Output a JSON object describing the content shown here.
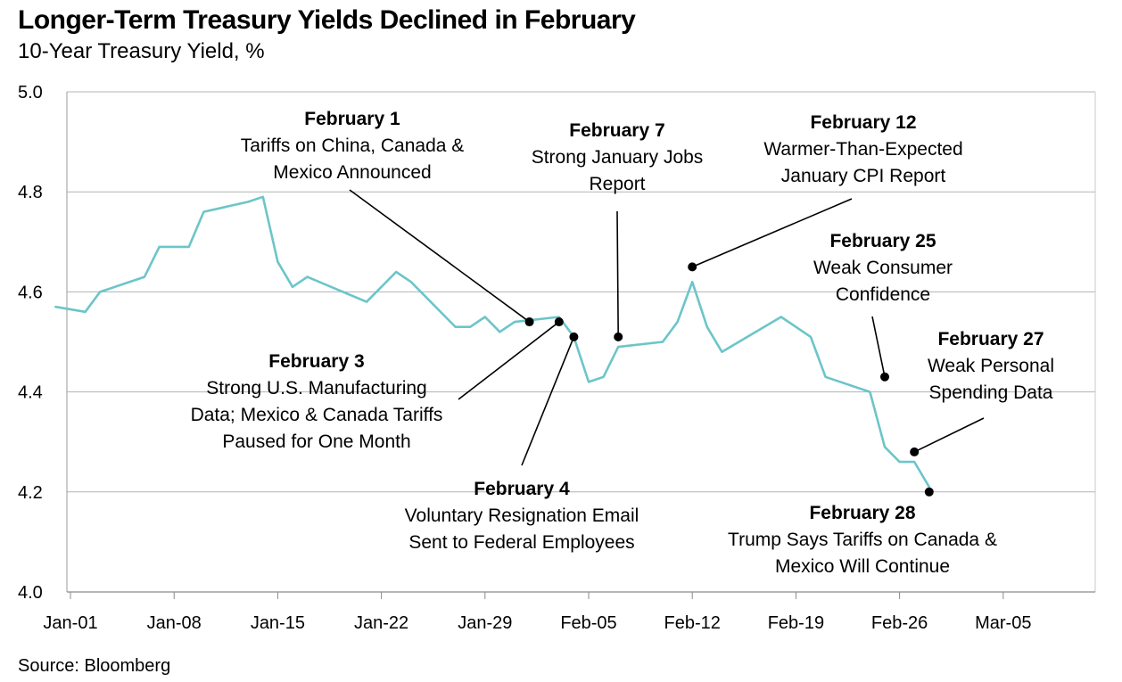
{
  "chart_data": {
    "type": "line",
    "title": "Longer-Term Treasury Yields Declined in February",
    "subtitle": "10-Year Treasury Yield, %",
    "source": "Source: Bloomberg",
    "xlabel": "",
    "ylabel": "",
    "ylim": [
      4.0,
      5.0
    ],
    "y_ticks": [
      "4.0",
      "4.2",
      "4.4",
      "4.6",
      "4.8",
      "5.0"
    ],
    "x_ticks": [
      "Jan-01",
      "Jan-08",
      "Jan-15",
      "Jan-22",
      "Jan-29",
      "Feb-05",
      "Feb-12",
      "Feb-19",
      "Feb-26",
      "Mar-05"
    ],
    "grid": "horizontal",
    "line_color": "#6cc5c9",
    "series": [
      {
        "x": [
          "2024-12-31",
          "2025-01-02",
          "2025-01-03",
          "2025-01-06",
          "2025-01-07",
          "2025-01-08",
          "2025-01-09",
          "2025-01-10",
          "2025-01-13",
          "2025-01-14",
          "2025-01-15",
          "2025-01-16",
          "2025-01-17",
          "2025-01-21",
          "2025-01-22",
          "2025-01-23",
          "2025-01-24",
          "2025-01-27",
          "2025-01-28",
          "2025-01-29",
          "2025-01-30",
          "2025-01-31",
          "2025-02-03",
          "2025-02-04",
          "2025-02-05",
          "2025-02-06",
          "2025-02-07",
          "2025-02-10",
          "2025-02-11",
          "2025-02-12",
          "2025-02-13",
          "2025-02-14",
          "2025-02-18",
          "2025-02-19",
          "2025-02-20",
          "2025-02-21",
          "2025-02-24",
          "2025-02-25",
          "2025-02-26",
          "2025-02-27",
          "2025-02-28"
        ],
        "values": [
          4.57,
          4.56,
          4.6,
          4.63,
          4.69,
          4.69,
          4.69,
          4.76,
          4.78,
          4.79,
          4.66,
          4.61,
          4.63,
          4.58,
          4.61,
          4.64,
          4.62,
          4.53,
          4.53,
          4.55,
          4.52,
          4.54,
          4.55,
          4.51,
          4.42,
          4.43,
          4.49,
          4.5,
          4.54,
          4.62,
          4.53,
          4.48,
          4.55,
          4.53,
          4.51,
          4.43,
          4.4,
          4.29,
          4.26,
          4.26,
          4.21
        ]
      }
    ],
    "annotations": [
      {
        "date_label": "February 1",
        "lines": [
          "Tariffs on China, Canada &",
          "Mexico Announced"
        ],
        "x": "2025-02-01",
        "y": 4.54
      },
      {
        "date_label": "February 3",
        "lines": [
          "Strong U.S. Manufacturing",
          "Data; Mexico & Canada Tariffs",
          "Paused for One Month"
        ],
        "x": "2025-02-03",
        "y": 4.54
      },
      {
        "date_label": "February 4",
        "lines": [
          "Voluntary Resignation Email",
          "Sent to Federal Employees"
        ],
        "x": "2025-02-04",
        "y": 4.51
      },
      {
        "date_label": "February 7",
        "lines": [
          "Strong January Jobs",
          "Report"
        ],
        "x": "2025-02-07",
        "y": 4.51
      },
      {
        "date_label": "February 12",
        "lines": [
          "Warmer-Than-Expected",
          "January CPI Report"
        ],
        "x": "2025-02-12",
        "y": 4.65
      },
      {
        "date_label": "February 25",
        "lines": [
          "Weak Consumer",
          "Confidence"
        ],
        "x": "2025-02-25",
        "y": 4.43
      },
      {
        "date_label": "February 27",
        "lines": [
          "Weak Personal",
          "Spending Data"
        ],
        "x": "2025-02-27",
        "y": 4.28
      },
      {
        "date_label": "February 28",
        "lines": [
          "Trump Says Tariffs on Canada &",
          "Mexico Will Continue"
        ],
        "x": "2025-02-28",
        "y": 4.2
      }
    ]
  }
}
